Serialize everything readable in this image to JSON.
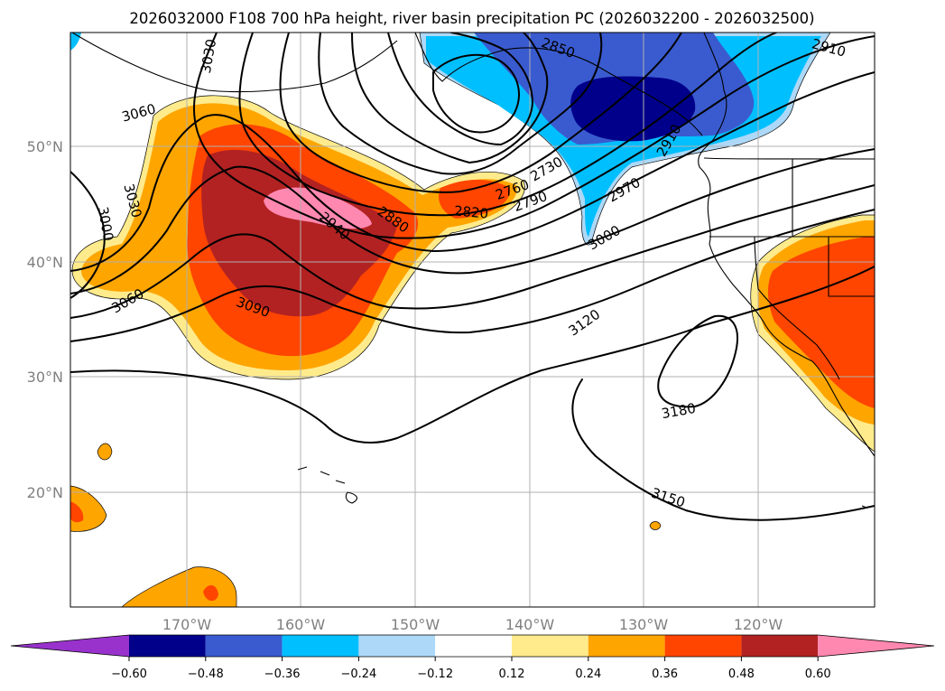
{
  "title": "2026032000 F108 700 hPa height, river basin precipitation PC (2026032200 - 2026032500)",
  "map": {
    "lon_ticks": [
      "170°W",
      "160°W",
      "150°W",
      "140°W",
      "130°W",
      "120°W"
    ],
    "lat_ticks": [
      "50°N",
      "40°N",
      "30°N",
      "20°N"
    ],
    "grid": true,
    "shading_colors": {
      "neg_060": "#9932cc",
      "neg_048": "#00008b",
      "neg_036": "#3a5bcf",
      "neg_024": "#00bfff",
      "neg_012": "#add8f7",
      "zero": "#ffffff",
      "pos_012": "#ffeb8c",
      "pos_024": "#ffa500",
      "pos_036": "#ff4500",
      "pos_048": "#b22222",
      "pos_060": "#ff88b0"
    },
    "contour_labels": [
      {
        "text": "3030",
        "id": "c3030a"
      },
      {
        "text": "3060",
        "id": "c3060a"
      },
      {
        "text": "3030",
        "id": "c3030b"
      },
      {
        "text": "3000",
        "id": "c3000a"
      },
      {
        "text": "3060",
        "id": "c3060b"
      },
      {
        "text": "3090",
        "id": "c3090"
      },
      {
        "text": "2940",
        "id": "c2940"
      },
      {
        "text": "2880",
        "id": "c2880"
      },
      {
        "text": "2820",
        "id": "c2820"
      },
      {
        "text": "2760",
        "id": "c2760"
      },
      {
        "text": "2790",
        "id": "c2790"
      },
      {
        "text": "2730",
        "id": "c2730"
      },
      {
        "text": "2850",
        "id": "c2850"
      },
      {
        "text": "2910",
        "id": "c2910a"
      },
      {
        "text": "2910",
        "id": "c2910b"
      },
      {
        "text": "2970",
        "id": "c2970"
      },
      {
        "text": "3000",
        "id": "c3000b"
      },
      {
        "text": "3120",
        "id": "c3120"
      },
      {
        "text": "3180",
        "id": "c3180"
      },
      {
        "text": "3150",
        "id": "c3150"
      }
    ]
  },
  "colorbar": {
    "ticks": [
      "−0.60",
      "−0.48",
      "−0.36",
      "−0.24",
      "−0.12",
      "0.12",
      "0.24",
      "0.36",
      "0.48",
      "0.60"
    ],
    "segments": [
      "#9932cc",
      "#00008b",
      "#3a5bcf",
      "#00bfff",
      "#add8f7",
      "#ffffff",
      "#ffeb8c",
      "#ffa500",
      "#ff4500",
      "#b22222",
      "#ff88b0"
    ]
  }
}
